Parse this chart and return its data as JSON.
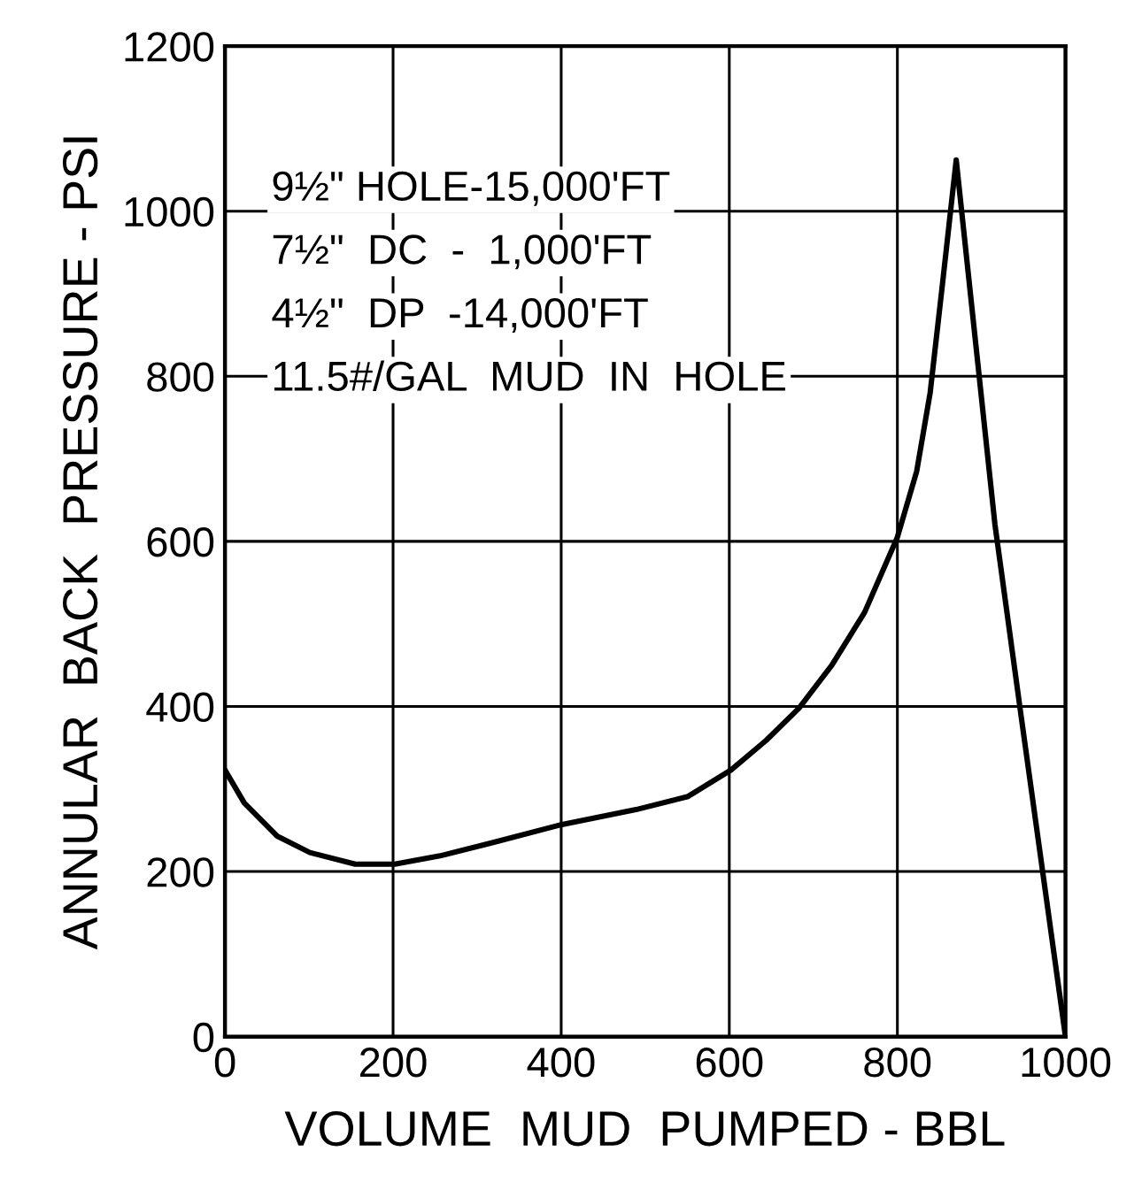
{
  "chart_data": {
    "type": "line",
    "xlabel": "VOLUME  MUD  PUMPED - BBL",
    "ylabel": "ANNULAR  BACK  PRESSURE - PSI",
    "annotations": [
      "9½\" HOLE-15,000'FT",
      "7½\"  DC  -  1,000'FT",
      "4½\"  DP  -14,000'FT",
      "11.5#/GAL  MUD  IN  HOLE"
    ],
    "series": [
      {
        "color": "#000000",
        "x": [
          0,
          23,
          62,
          101,
          155,
          202,
          256,
          318,
          401,
          489,
          551,
          602,
          644,
          683,
          722,
          761,
          800,
          823,
          839,
          854,
          870,
          916,
          947,
          1000
        ],
        "values": [
          323,
          283,
          243,
          223,
          209,
          209,
          219,
          235,
          257,
          275,
          291,
          323,
          359,
          398,
          450,
          514,
          605,
          685,
          780,
          915,
          1062,
          621,
          390,
          0
        ]
      }
    ],
    "xlim": [
      0,
      1000
    ],
    "ylim": [
      0,
      1200
    ],
    "xticks": [
      0,
      200,
      400,
      600,
      800,
      1000
    ],
    "yticks": [
      0,
      200,
      400,
      600,
      800,
      1000,
      1200
    ],
    "grid": true,
    "marker": "none",
    "line_style": "solid"
  }
}
